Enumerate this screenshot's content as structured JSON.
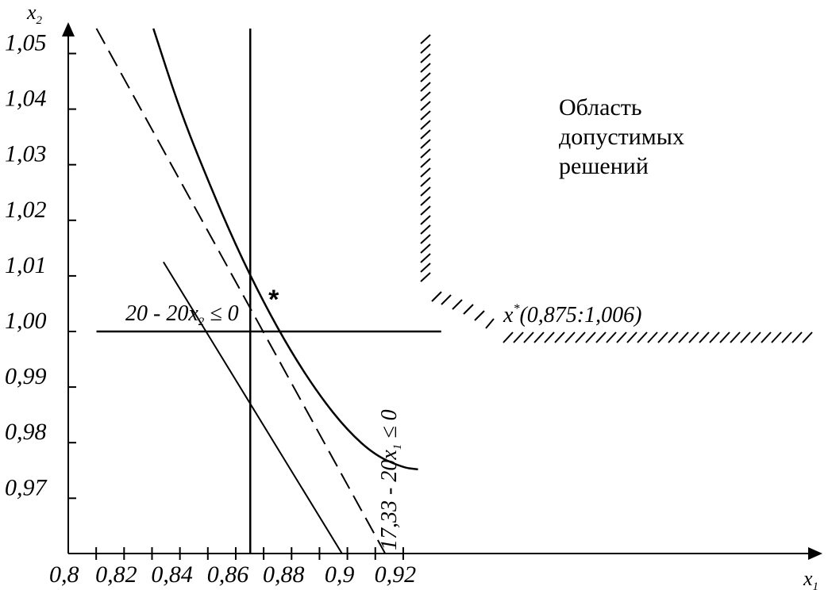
{
  "chart_data": {
    "type": "line",
    "title": "",
    "xlabel": {
      "base": "x",
      "sub": "1"
    },
    "ylabel": {
      "base": "x",
      "sub": "2"
    },
    "xlim": [
      0.8,
      0.93
    ],
    "ylim": [
      0.96,
      1.055
    ],
    "x_ticks": [
      {
        "value": 0.8,
        "label": "0,8"
      },
      {
        "value": 0.82,
        "label": "0,82"
      },
      {
        "value": 0.84,
        "label": "0,84"
      },
      {
        "value": 0.86,
        "label": "0,86"
      },
      {
        "value": 0.88,
        "label": "0,88"
      },
      {
        "value": 0.9,
        "label": "0,9"
      },
      {
        "value": 0.92,
        "label": "0,92"
      }
    ],
    "x_minor_ticks": [
      0.81,
      0.83,
      0.85,
      0.87,
      0.89,
      0.91
    ],
    "y_ticks": [
      {
        "value": 0.97,
        "label": "0,97"
      },
      {
        "value": 0.98,
        "label": "0,98"
      },
      {
        "value": 0.99,
        "label": "0,99"
      },
      {
        "value": 1.0,
        "label": "1,00"
      },
      {
        "value": 1.01,
        "label": "1,01"
      },
      {
        "value": 1.02,
        "label": "1,02"
      },
      {
        "value": 1.03,
        "label": "1,03"
      },
      {
        "value": 1.04,
        "label": "1,04"
      },
      {
        "value": 1.05,
        "label": "1,05"
      }
    ],
    "series": [
      {
        "style": "solid-curve",
        "points": [
          [
            0.8305,
            1.0545
          ],
          [
            0.84,
            1.0398
          ],
          [
            0.85,
            1.0272
          ],
          [
            0.86,
            1.0155
          ],
          [
            0.87,
            1.0052
          ],
          [
            0.88,
            0.9962
          ],
          [
            0.89,
            0.9885
          ],
          [
            0.9,
            0.9822
          ],
          [
            0.91,
            0.9777
          ],
          [
            0.92,
            0.9755
          ],
          [
            0.9253,
            0.9752
          ]
        ]
      },
      {
        "style": "dashed",
        "points": [
          [
            0.8101,
            1.0545
          ],
          [
            0.9182,
            0.9558
          ]
        ]
      },
      {
        "style": "solid-line",
        "points": [
          [
            0.8341,
            1.0125
          ],
          [
            0.9046,
            0.9547
          ]
        ]
      },
      {
        "style": "constraint-horizontal",
        "hatched": true,
        "points": [
          [
            0.8101,
            1.0
          ],
          [
            0.9336,
            1.0
          ]
        ]
      },
      {
        "style": "constraint-vertical",
        "hatched": true,
        "points": [
          [
            0.8652,
            0.9547
          ],
          [
            0.8652,
            1.0545
          ]
        ]
      }
    ],
    "optimum": {
      "x": 0.875,
      "y": 1.006,
      "marker": "*"
    },
    "annotations": {
      "constraint_x2": {
        "text": "20 - 20x",
        "sub": "2",
        "rel": "≤ 0"
      },
      "constraint_x1": {
        "text": "17,33 - 20x",
        "sub": "1",
        "rel": "≤ 0"
      },
      "optimum_label": {
        "base": "x",
        "sup": "*",
        "rest": "(0,875:1,006)"
      },
      "region_lines": [
        "Область",
        "допустимых",
        "решений"
      ]
    }
  }
}
